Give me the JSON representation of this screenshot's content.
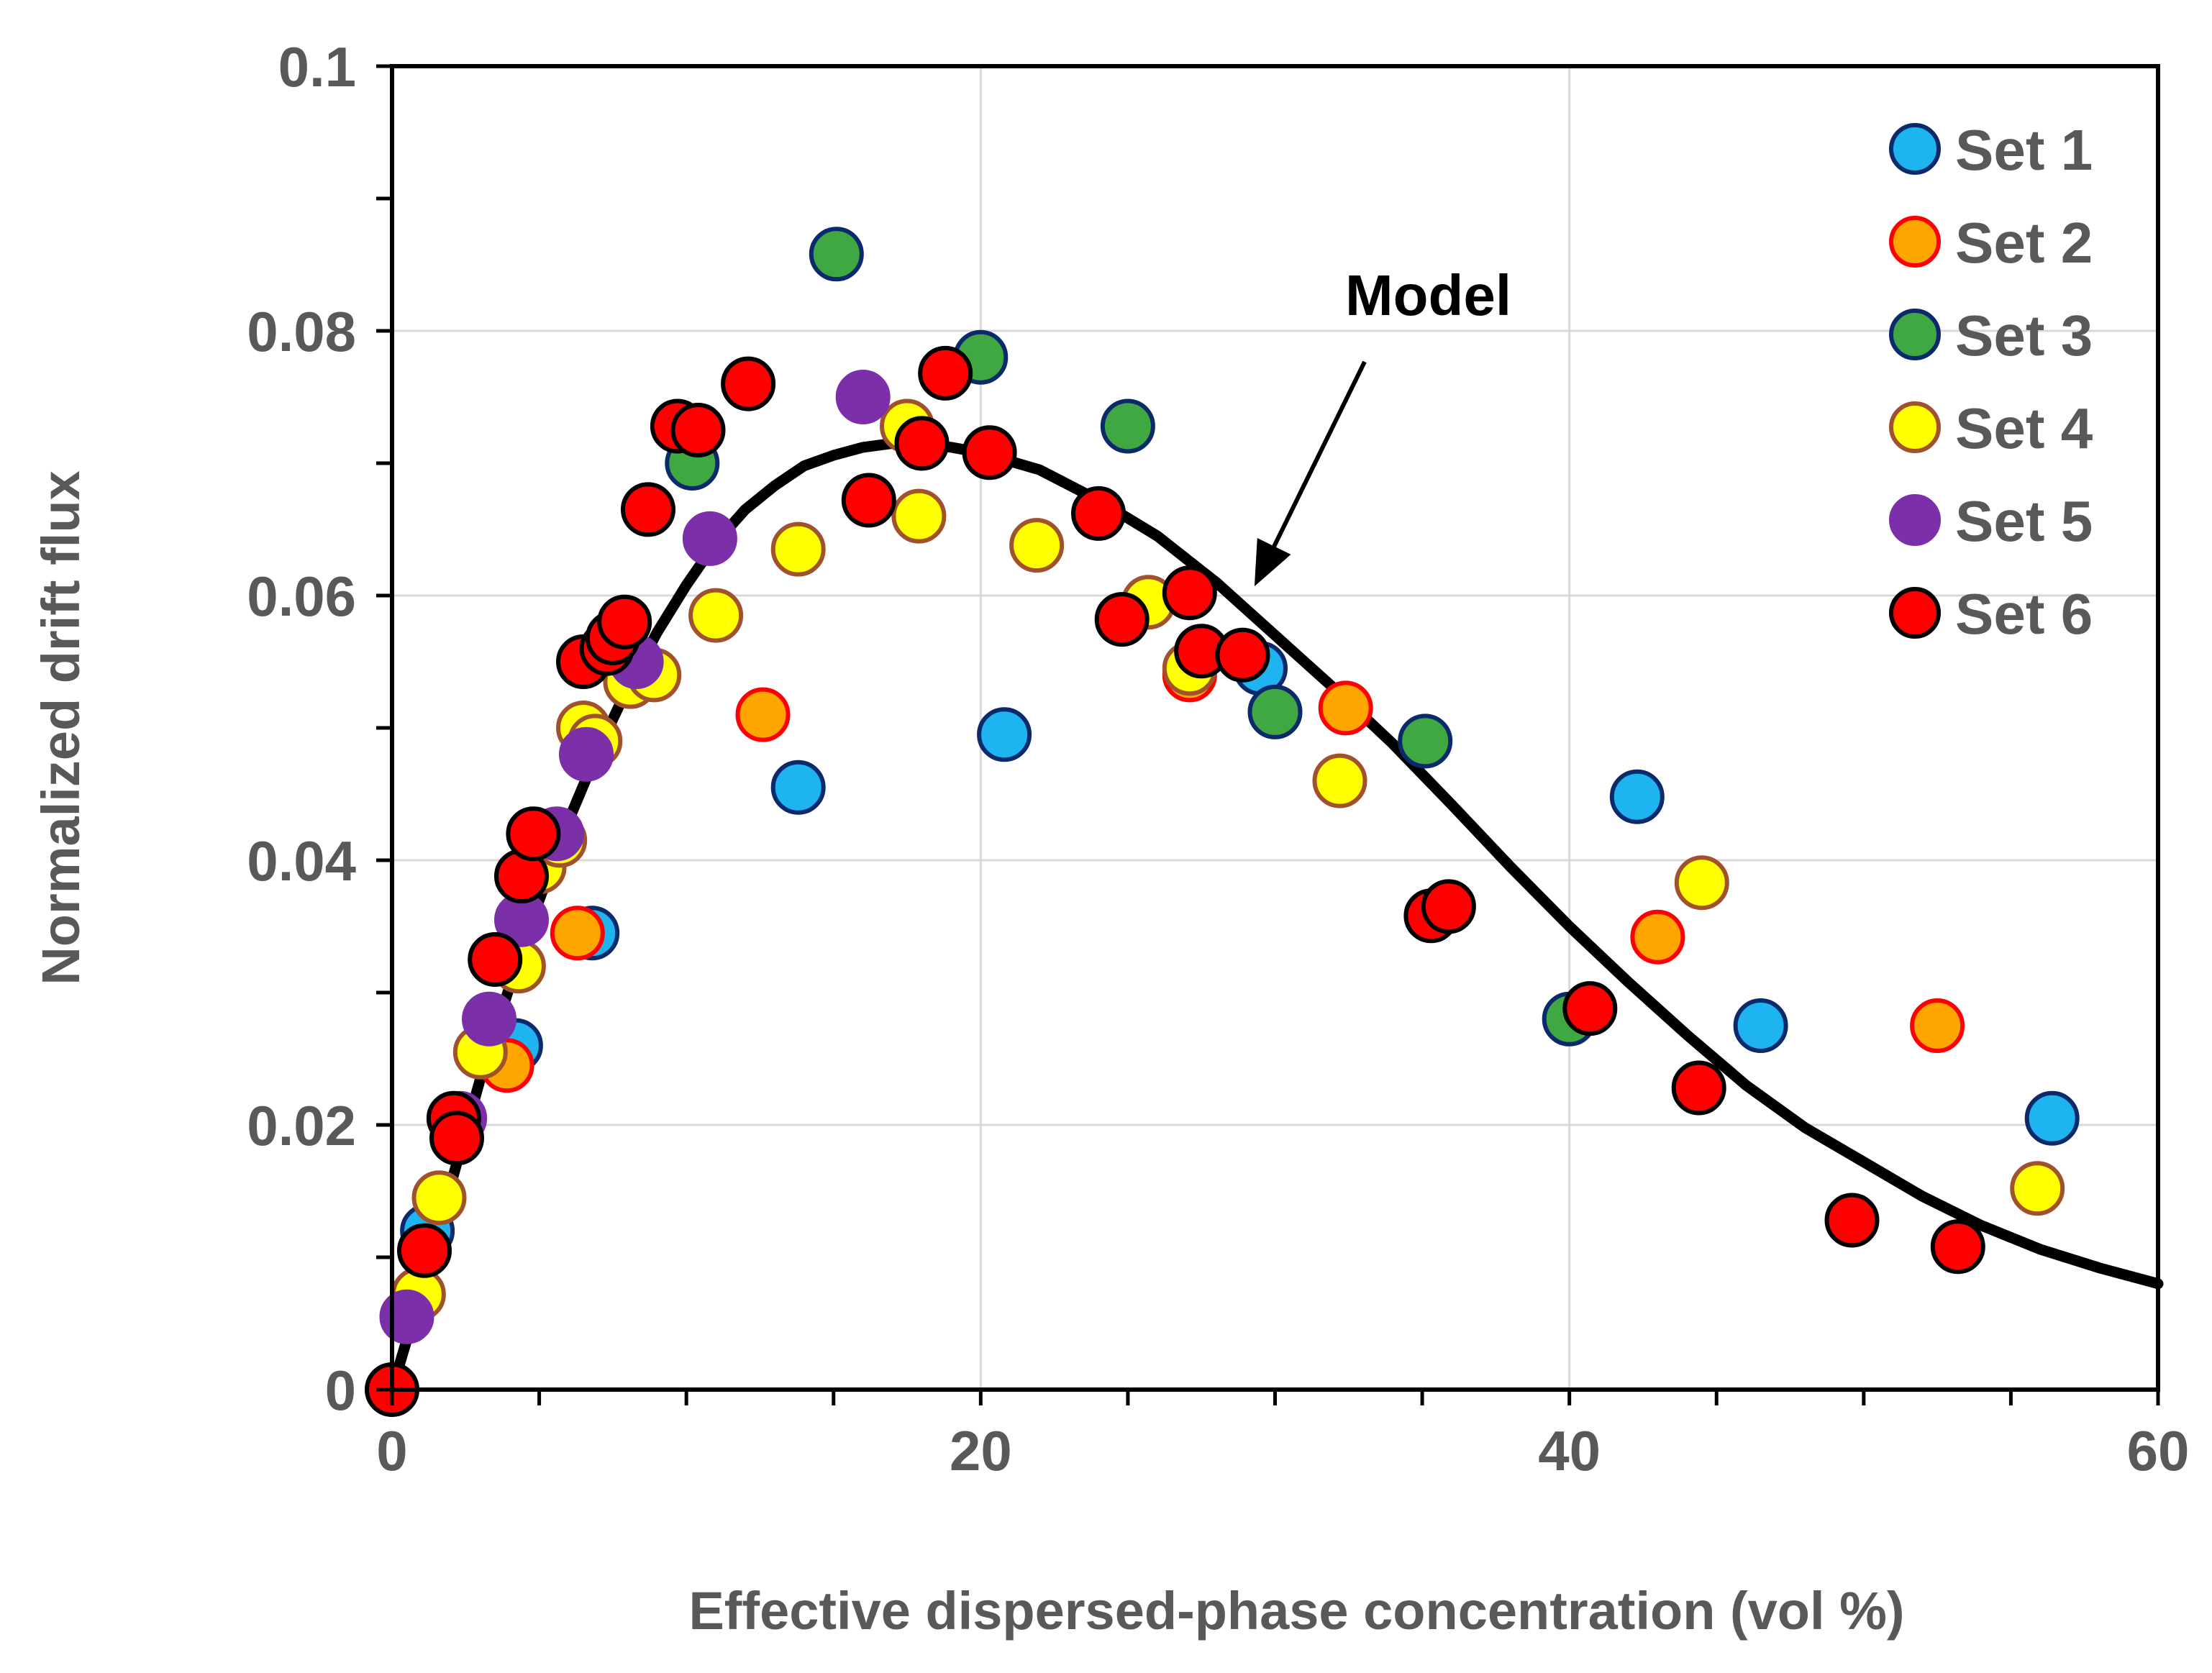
{
  "chart_data": {
    "type": "scatter",
    "title": "",
    "xlabel": "Effective dispersed-phase concentration (vol %)",
    "ylabel": "Normalized drift flux",
    "xlim": [
      0,
      60
    ],
    "ylim": [
      0,
      0.1
    ],
    "x_ticks": [
      "0",
      "20",
      "40",
      "60"
    ],
    "y_ticks": [
      "0",
      "0.02",
      "0.04",
      "0.06",
      "0.08",
      "0.1"
    ],
    "grid": "major gridlines",
    "legend_position": "top-right",
    "series": [
      {
        "name": "Set 1",
        "fill": "#1EB4F0",
        "stroke": "#0B2A6B",
        "points": [
          [
            1.2,
            0.012
          ],
          [
            4.2,
            0.026
          ],
          [
            6.8,
            0.0345
          ],
          [
            13.8,
            0.0455
          ],
          [
            20.8,
            0.0495
          ],
          [
            29.5,
            0.0545
          ],
          [
            42.3,
            0.0448
          ],
          [
            46.5,
            0.0275
          ],
          [
            56.4,
            0.0205
          ]
        ]
      },
      {
        "name": "Set 2",
        "fill": "#FFA500",
        "stroke": "#FF0000",
        "points": [
          [
            3.9,
            0.0245
          ],
          [
            6.3,
            0.0345
          ],
          [
            12.6,
            0.051
          ],
          [
            27.1,
            0.054
          ],
          [
            32.4,
            0.0515
          ],
          [
            43.0,
            0.0342
          ],
          [
            52.5,
            0.0275
          ]
        ]
      },
      {
        "name": "Set 3",
        "fill": "#3FA843",
        "stroke": "#0B2A6B",
        "points": [
          [
            10.2,
            0.07
          ],
          [
            15.1,
            0.0858
          ],
          [
            20.0,
            0.078
          ],
          [
            25.0,
            0.0728
          ],
          [
            30.0,
            0.0512
          ],
          [
            35.1,
            0.049
          ],
          [
            40.0,
            0.028
          ]
        ]
      },
      {
        "name": "Set 4",
        "fill": "#FFFF00",
        "stroke": "#A0522D",
        "points": [
          [
            0.9,
            0.0072
          ],
          [
            1.6,
            0.0145
          ],
          [
            3.0,
            0.0255
          ],
          [
            4.3,
            0.032
          ],
          [
            5.0,
            0.0395
          ],
          [
            5.7,
            0.0415
          ],
          [
            6.5,
            0.05
          ],
          [
            6.9,
            0.049
          ],
          [
            8.1,
            0.0535
          ],
          [
            8.9,
            0.054
          ],
          [
            11.0,
            0.0585
          ],
          [
            13.8,
            0.0635
          ],
          [
            17.5,
            0.0728
          ],
          [
            17.9,
            0.066
          ],
          [
            21.9,
            0.0638
          ],
          [
            25.7,
            0.0595
          ],
          [
            27.1,
            0.0545
          ],
          [
            32.2,
            0.046
          ],
          [
            44.5,
            0.0383
          ],
          [
            55.9,
            0.0152
          ]
        ]
      },
      {
        "name": "Set 5",
        "fill": "#7B2FA8",
        "stroke": "#7B2FA8",
        "points": [
          [
            0.5,
            0.0055
          ],
          [
            2.3,
            0.0205
          ],
          [
            3.3,
            0.028
          ],
          [
            4.4,
            0.0355
          ],
          [
            5.6,
            0.042
          ],
          [
            6.6,
            0.048
          ],
          [
            8.3,
            0.055
          ],
          [
            10.8,
            0.0643
          ],
          [
            16.0,
            0.075
          ]
        ]
      },
      {
        "name": "Set 6",
        "fill": "#FF0000",
        "stroke": "#000000",
        "points": [
          [
            0.0,
            0.0
          ],
          [
            1.1,
            0.0105
          ],
          [
            2.1,
            0.0205
          ],
          [
            2.2,
            0.019
          ],
          [
            3.5,
            0.0325
          ],
          [
            4.4,
            0.0388
          ],
          [
            4.8,
            0.042
          ],
          [
            6.5,
            0.055
          ],
          [
            7.3,
            0.056
          ],
          [
            7.5,
            0.0568
          ],
          [
            7.9,
            0.058
          ],
          [
            8.7,
            0.0665
          ],
          [
            9.7,
            0.0728
          ],
          [
            10.4,
            0.0725
          ],
          [
            12.1,
            0.076
          ],
          [
            16.2,
            0.0672
          ],
          [
            18.0,
            0.0715
          ],
          [
            18.8,
            0.0768
          ],
          [
            20.3,
            0.0708
          ],
          [
            24.0,
            0.0662
          ],
          [
            24.8,
            0.0582
          ],
          [
            27.1,
            0.0602
          ],
          [
            27.5,
            0.0558
          ],
          [
            28.9,
            0.0555
          ],
          [
            35.3,
            0.0358
          ],
          [
            35.9,
            0.0365
          ],
          [
            40.7,
            0.0288
          ],
          [
            44.4,
            0.0228
          ],
          [
            49.6,
            0.0128
          ],
          [
            53.2,
            0.0108
          ]
        ]
      }
    ],
    "model_curve": {
      "points": [
        [
          0,
          0.0
        ],
        [
          1,
          0.0075
        ],
        [
          2,
          0.0155
        ],
        [
          3,
          0.0235
        ],
        [
          4,
          0.0305
        ],
        [
          5,
          0.037
        ],
        [
          6,
          0.043
        ],
        [
          7,
          0.0483
        ],
        [
          8,
          0.053
        ],
        [
          9,
          0.0572
        ],
        [
          10,
          0.0608
        ],
        [
          11,
          0.064
        ],
        [
          12,
          0.0665
        ],
        [
          13,
          0.0683
        ],
        [
          14,
          0.0698
        ],
        [
          15,
          0.0706
        ],
        [
          16,
          0.0712
        ],
        [
          17,
          0.0715
        ],
        [
          18,
          0.0715
        ],
        [
          19,
          0.0712
        ],
        [
          20,
          0.0708
        ],
        [
          22,
          0.0695
        ],
        [
          24,
          0.0672
        ],
        [
          26,
          0.0645
        ],
        [
          28,
          0.061
        ],
        [
          30,
          0.057
        ],
        [
          32,
          0.053
        ],
        [
          34,
          0.0488
        ],
        [
          36,
          0.0442
        ],
        [
          38,
          0.0395
        ],
        [
          40,
          0.035
        ],
        [
          42,
          0.0308
        ],
        [
          44,
          0.0268
        ],
        [
          46,
          0.023
        ],
        [
          48,
          0.0198
        ],
        [
          50,
          0.0172
        ],
        [
          52,
          0.0146
        ],
        [
          54,
          0.0124
        ],
        [
          56,
          0.0106
        ],
        [
          58,
          0.0092
        ],
        [
          60,
          0.008
        ]
      ]
    },
    "annotations": [
      {
        "text": "Model",
        "arrow_to": [
          29.3,
          0.0607
        ]
      }
    ]
  }
}
